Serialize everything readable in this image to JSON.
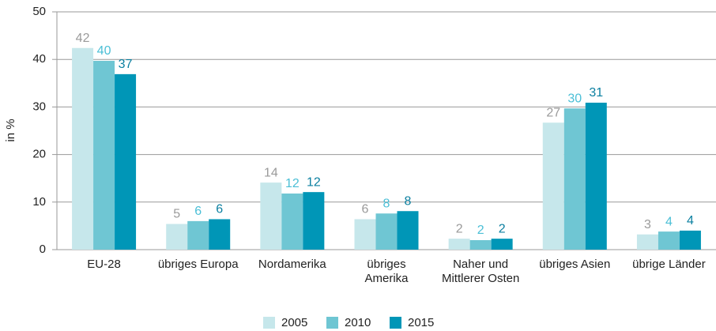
{
  "chart_data": {
    "type": "bar",
    "y_label": "in %",
    "categories": [
      "EU-28",
      "übriges Europa",
      "Nordamerika",
      "übriges\nAmerika",
      "Naher und\nMittlerer Osten",
      "übriges Asien",
      "übrige Länder"
    ],
    "series": [
      {
        "name": "2005",
        "color": "#c6e7eb",
        "label_color": "#9a9a9a",
        "values": [
          42.4,
          5.4,
          14.1,
          6.4,
          2.3,
          26.7,
          3.2
        ],
        "value_labels": [
          "42",
          "5",
          "14",
          "6",
          "2",
          "27",
          "3"
        ]
      },
      {
        "name": "2010",
        "color": "#6fc6d3",
        "label_color": "#4bbfd6",
        "values": [
          39.7,
          6.0,
          11.8,
          7.6,
          2.0,
          29.7,
          3.8
        ],
        "value_labels": [
          "40",
          "6",
          "12",
          "8",
          "2",
          "30",
          "4"
        ]
      },
      {
        "name": "2015",
        "color": "#0096b7",
        "label_color": "#0a7fa0",
        "values": [
          36.9,
          6.4,
          12.1,
          8.1,
          2.3,
          30.9,
          4.0
        ],
        "value_labels": [
          "37",
          "6",
          "12",
          "8",
          "2",
          "31",
          "4"
        ]
      }
    ],
    "ylim": [
      0,
      50
    ],
    "yticks": [
      0,
      10,
      20,
      30,
      40,
      50
    ],
    "grid": true,
    "legend": "bottom"
  }
}
